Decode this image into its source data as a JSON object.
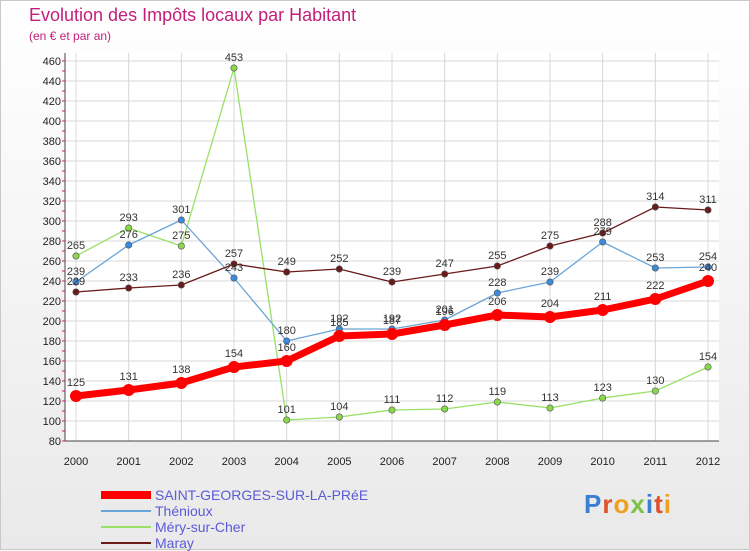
{
  "title": "Evolution des Impôts locaux par Habitant",
  "subtitle": "(en € et par an)",
  "logo": "Proxiti",
  "chart_data": {
    "type": "line",
    "x": [
      "2000",
      "2001",
      "2002",
      "2003",
      "2004",
      "2005",
      "2006",
      "2007",
      "2008",
      "2009",
      "2010",
      "2011",
      "2012"
    ],
    "ylim": [
      80,
      460
    ],
    "yticks": [
      80,
      100,
      120,
      140,
      160,
      180,
      200,
      220,
      240,
      260,
      280,
      300,
      320,
      340,
      360,
      380,
      400,
      420,
      440,
      460
    ],
    "grid": true,
    "legend_position": "bottom-left",
    "series": [
      {
        "name": "SAINT-GEORGES-SUR-LA-PRéE",
        "color": "#ff0000",
        "width": 7,
        "values": [
          125,
          131,
          138,
          154,
          160,
          185,
          187,
          196,
          206,
          204,
          211,
          222,
          240
        ],
        "labels": [
          "125",
          "131",
          "138",
          "154",
          "160",
          "185",
          "187",
          "196",
          "206",
          "204",
          "211",
          "222",
          "240"
        ]
      },
      {
        "name": "Thénioux",
        "color": "#6aa5d8",
        "width": 1.3,
        "values": [
          239,
          276,
          301,
          243,
          180,
          192,
          192,
          201,
          228,
          239,
          279,
          253,
          254
        ],
        "labels": [
          "239",
          "276",
          "301",
          "243",
          "180",
          "192",
          "192",
          "201",
          "228",
          "239",
          "279",
          "253",
          "254"
        ]
      },
      {
        "name": "Méry-sur-Cher",
        "color": "#99e066",
        "width": 1.3,
        "values": [
          265,
          293,
          275,
          453,
          101,
          104,
          111,
          112,
          119,
          113,
          123,
          130,
          154
        ],
        "labels": [
          "265",
          "293",
          "275",
          "453",
          "101",
          "104",
          "111",
          "112",
          "119",
          "113",
          "123",
          "130",
          "154"
        ]
      },
      {
        "name": "Maray",
        "color": "#6b1a1a",
        "width": 1.3,
        "values": [
          229,
          233,
          236,
          257,
          249,
          252,
          239,
          247,
          255,
          275,
          288,
          314,
          311
        ],
        "labels": [
          "229",
          "233",
          "236",
          "257",
          "249",
          "252",
          "239",
          "247",
          "255",
          "275",
          "288",
          "314",
          "311"
        ]
      }
    ]
  }
}
